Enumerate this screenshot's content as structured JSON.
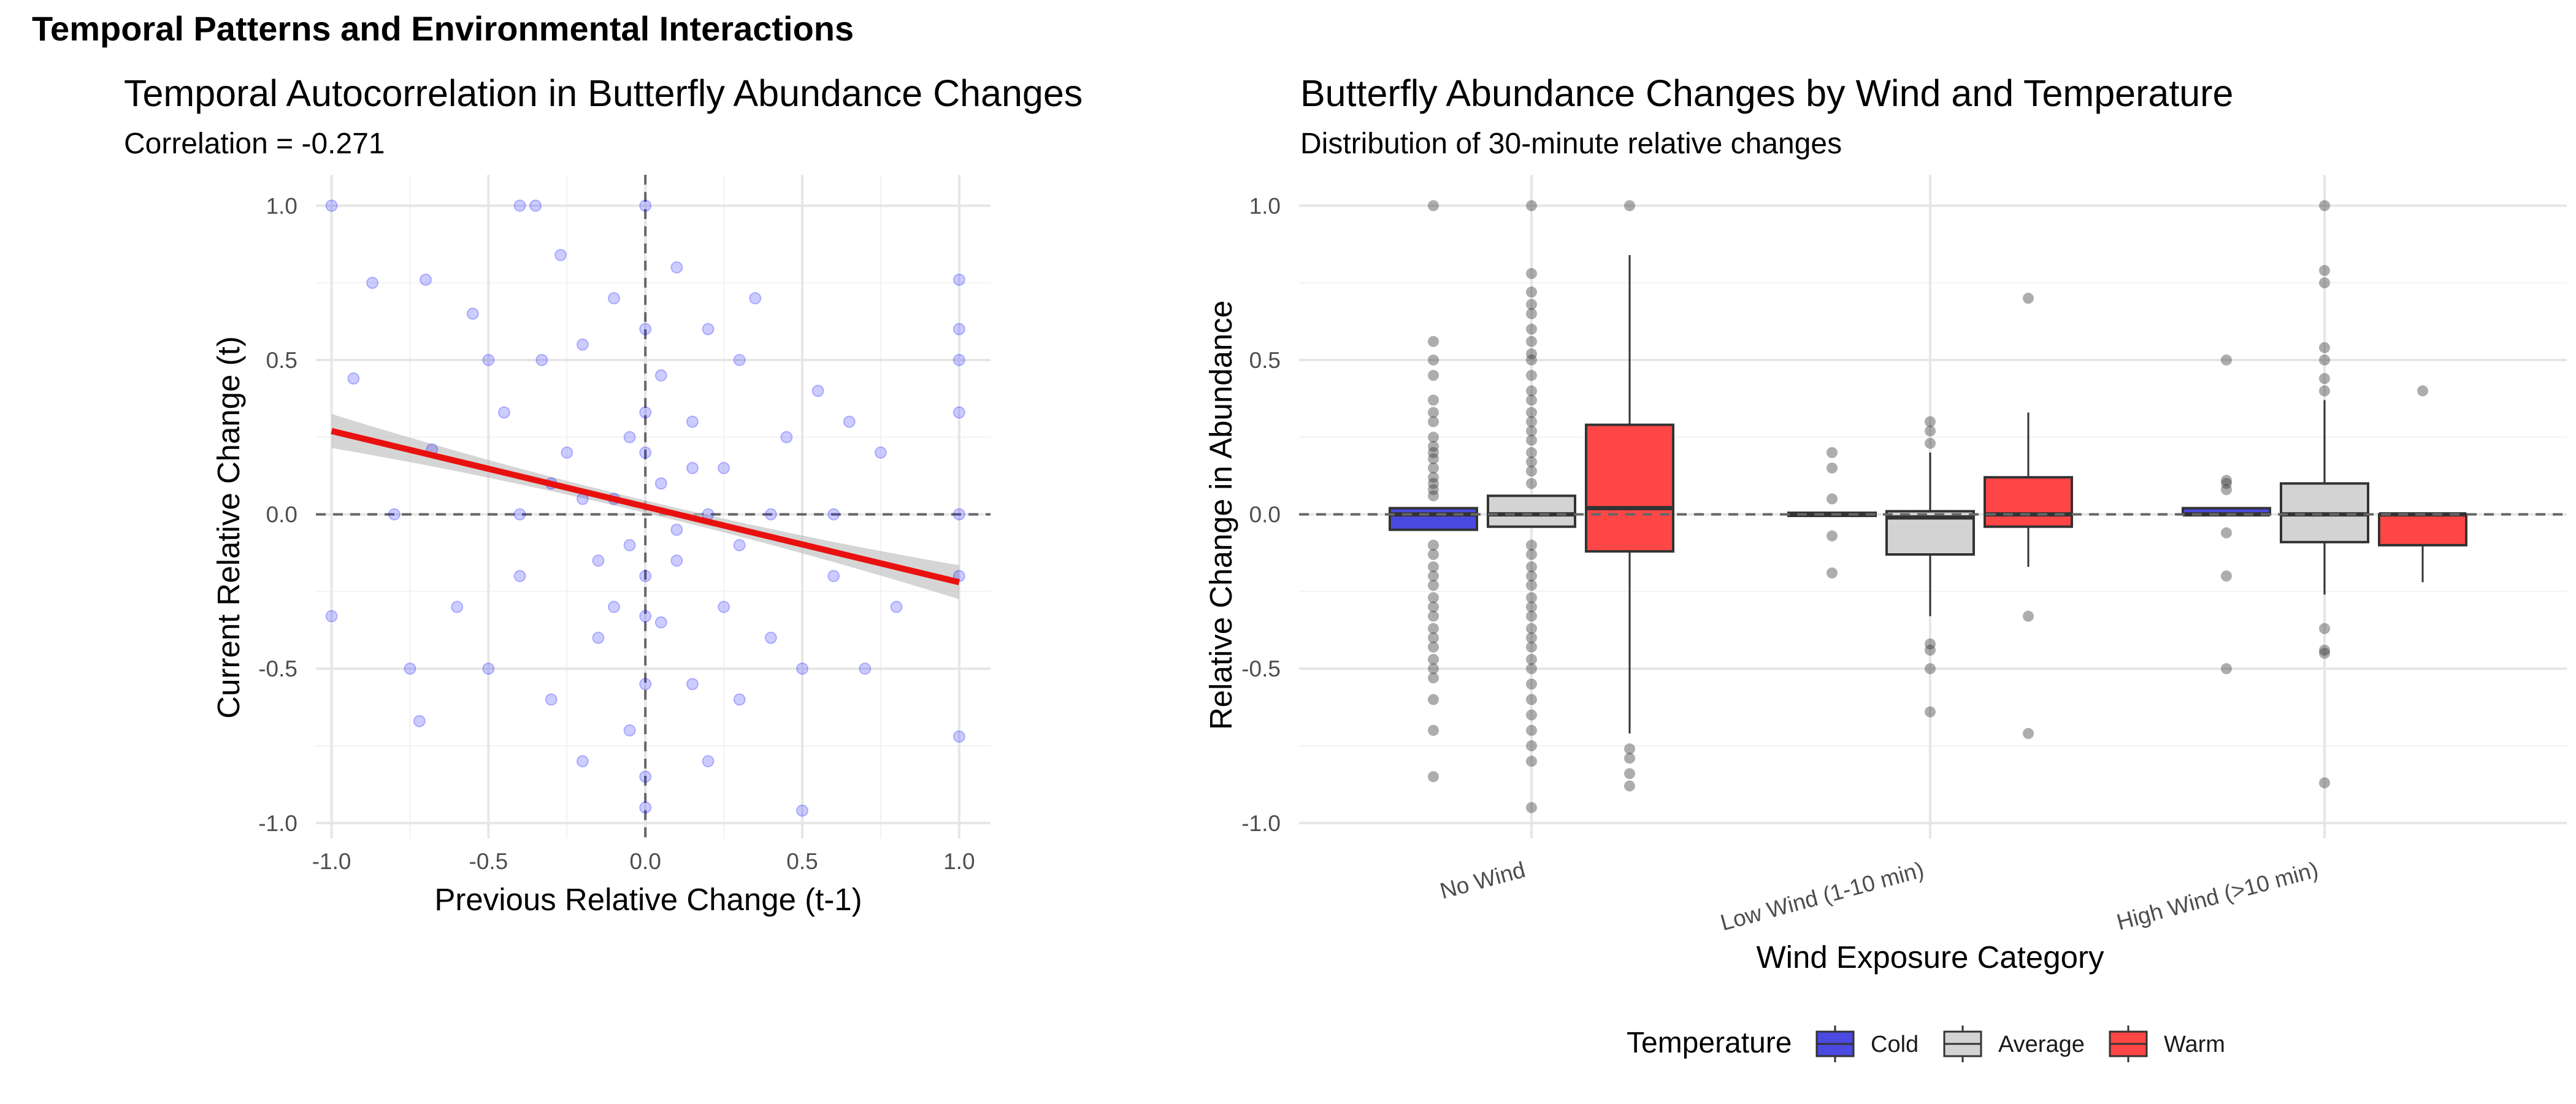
{
  "page": {
    "title": "Temporal Patterns and Environmental Interactions"
  },
  "colors": {
    "cold": "#4a4ae0",
    "average": "#d3d3d3",
    "warm": "#ff4646",
    "points": "#0000ff",
    "fit": "#e8110f"
  },
  "chart_data": [
    {
      "type": "scatter",
      "title": "Temporal Autocorrelation in Butterfly Abundance Changes",
      "subtitle": "Correlation = -0.271",
      "xlabel": "Previous Relative Change (t-1)",
      "ylabel": "Current Relative Change (t)",
      "xlim": [
        -1.05,
        1.1
      ],
      "ylim": [
        -1.05,
        1.1
      ],
      "x_ticks": [
        -1.0,
        -0.5,
        0.0,
        0.5,
        1.0
      ],
      "y_ticks": [
        -1.0,
        -0.5,
        0.0,
        0.5,
        1.0
      ],
      "x_tick_labels": [
        "-1.0",
        "-0.5",
        "0.0",
        "0.5",
        "1.0"
      ],
      "y_tick_labels": [
        "-1.0",
        "-0.5",
        "0.0",
        "0.5",
        "1.0"
      ],
      "reference_lines": {
        "h": 0,
        "v": 0,
        "style": "dashed"
      },
      "fit": {
        "x": [
          -1.0,
          1.0
        ],
        "y": [
          0.27,
          -0.22
        ],
        "color": "red",
        "confidence_band": true
      },
      "point_color": "blue",
      "point_alpha": 0.2,
      "points": [
        [
          -1.0,
          1.0
        ],
        [
          -0.4,
          1.0
        ],
        [
          -0.35,
          1.0
        ],
        [
          0.0,
          1.0
        ],
        [
          -1.0,
          -0.33
        ],
        [
          -0.93,
          0.44
        ],
        [
          -0.87,
          0.75
        ],
        [
          -0.8,
          0.0
        ],
        [
          -0.75,
          -0.5
        ],
        [
          -0.72,
          -0.67
        ],
        [
          -0.7,
          0.76
        ],
        [
          -0.68,
          0.21
        ],
        [
          -0.6,
          -0.3
        ],
        [
          -0.55,
          0.65
        ],
        [
          -0.5,
          0.5
        ],
        [
          -0.5,
          -0.5
        ],
        [
          -0.45,
          0.33
        ],
        [
          -0.4,
          -0.2
        ],
        [
          -0.33,
          0.5
        ],
        [
          -0.3,
          -0.6
        ],
        [
          -0.27,
          0.84
        ],
        [
          -0.25,
          0.2
        ],
        [
          -0.2,
          -0.8
        ],
        [
          -0.2,
          0.55
        ],
        [
          -0.15,
          -0.4
        ],
        [
          -0.1,
          0.7
        ],
        [
          -0.1,
          -0.3
        ],
        [
          -0.05,
          0.25
        ],
        [
          -0.05,
          -0.7
        ],
        [
          0.0,
          0.6
        ],
        [
          0.0,
          -0.55
        ],
        [
          0.0,
          -0.95
        ],
        [
          0.0,
          -0.85
        ],
        [
          0.05,
          0.45
        ],
        [
          0.05,
          -0.35
        ],
        [
          0.1,
          0.8
        ],
        [
          0.1,
          -0.15
        ],
        [
          0.15,
          0.3
        ],
        [
          0.15,
          -0.55
        ],
        [
          0.2,
          0.6
        ],
        [
          0.2,
          -0.8
        ],
        [
          0.25,
          0.15
        ],
        [
          0.25,
          -0.3
        ],
        [
          0.3,
          0.5
        ],
        [
          0.3,
          -0.6
        ],
        [
          0.35,
          0.7
        ],
        [
          0.4,
          -0.4
        ],
        [
          0.45,
          0.25
        ],
        [
          0.5,
          -0.5
        ],
        [
          0.5,
          -0.96
        ],
        [
          0.55,
          0.4
        ],
        [
          0.6,
          -0.2
        ],
        [
          0.65,
          0.3
        ],
        [
          0.7,
          -0.5
        ],
        [
          0.75,
          0.2
        ],
        [
          0.8,
          -0.3
        ],
        [
          1.0,
          0.76
        ],
        [
          1.0,
          0.6
        ],
        [
          1.0,
          0.5
        ],
        [
          1.0,
          0.33
        ],
        [
          1.0,
          0.0
        ],
        [
          1.0,
          -0.2
        ],
        [
          1.0,
          -0.72
        ],
        [
          -0.1,
          0.05
        ],
        [
          0.1,
          -0.05
        ],
        [
          0.05,
          0.1
        ],
        [
          -0.05,
          -0.1
        ],
        [
          0.2,
          0.0
        ],
        [
          -0.2,
          0.05
        ],
        [
          0.3,
          -0.1
        ],
        [
          -0.3,
          0.1
        ],
        [
          0.15,
          0.15
        ],
        [
          -0.15,
          -0.15
        ],
        [
          0.4,
          0.0
        ],
        [
          -0.4,
          0.0
        ],
        [
          0.6,
          0.0
        ],
        [
          0.0,
          0.2
        ],
        [
          0.0,
          -0.2
        ],
        [
          0.0,
          0.33
        ],
        [
          0.0,
          -0.33
        ]
      ]
    },
    {
      "type": "box",
      "title": "Butterfly Abundance Changes by Wind and Temperature",
      "subtitle": "Distribution of 30-minute relative changes",
      "xlabel": "Wind Exposure Category",
      "ylabel": "Relative Change in Abundance",
      "ylim": [
        -1.05,
        1.1
      ],
      "y_ticks": [
        -1.0,
        -0.5,
        0.0,
        0.5,
        1.0
      ],
      "y_tick_labels": [
        "-1.0",
        "-0.5",
        "0.0",
        "0.5",
        "1.0"
      ],
      "reference_line": {
        "h": 0,
        "style": "dashed"
      },
      "categories": [
        "No Wind",
        "Low Wind (1-10 min)",
        "High Wind (>10 min)"
      ],
      "legend": {
        "title": "Temperature",
        "position": "bottom",
        "entries": [
          "Cold",
          "Average",
          "Warm"
        ]
      },
      "boxes": [
        {
          "category": "No Wind",
          "group": "Cold",
          "q1": -0.05,
          "median": 0.0,
          "q3": 0.02,
          "whisker_low": -0.05,
          "whisker_high": 0.02,
          "outliers": [
            1.0,
            0.56,
            0.5,
            0.45,
            0.37,
            0.33,
            0.3,
            0.25,
            0.22,
            0.2,
            0.18,
            0.15,
            0.12,
            0.1,
            0.08,
            0.06,
            -0.1,
            -0.13,
            -0.17,
            -0.2,
            -0.23,
            -0.27,
            -0.3,
            -0.33,
            -0.37,
            -0.4,
            -0.43,
            -0.47,
            -0.5,
            -0.53,
            -0.6,
            -0.7,
            -0.85
          ]
        },
        {
          "category": "No Wind",
          "group": "Average",
          "q1": -0.04,
          "median": 0.0,
          "q3": 0.06,
          "whisker_low": -0.04,
          "whisker_high": 0.06,
          "outliers": [
            1.0,
            0.78,
            0.72,
            0.68,
            0.65,
            0.6,
            0.56,
            0.52,
            0.5,
            0.45,
            0.4,
            0.37,
            0.33,
            0.3,
            0.27,
            0.24,
            0.2,
            0.17,
            0.14,
            0.1,
            -0.1,
            -0.13,
            -0.17,
            -0.2,
            -0.23,
            -0.27,
            -0.3,
            -0.33,
            -0.37,
            -0.4,
            -0.43,
            -0.47,
            -0.5,
            -0.55,
            -0.6,
            -0.65,
            -0.7,
            -0.75,
            -0.8,
            -0.95
          ]
        },
        {
          "category": "No Wind",
          "group": "Warm",
          "q1": -0.12,
          "median": 0.02,
          "q3": 0.29,
          "whisker_low": -0.71,
          "whisker_high": 0.84,
          "outliers": [
            1.0,
            -0.76,
            -0.79,
            -0.84,
            -0.88
          ]
        },
        {
          "category": "Low Wind (1-10 min)",
          "group": "Cold",
          "q1": -0.005,
          "median": 0.0,
          "q3": 0.005,
          "whisker_low": -0.005,
          "whisker_high": 0.005,
          "outliers": [
            0.2,
            0.15,
            0.05,
            -0.07,
            -0.19
          ]
        },
        {
          "category": "Low Wind (1-10 min)",
          "group": "Average",
          "q1": -0.13,
          "median": -0.01,
          "q3": 0.01,
          "whisker_low": -0.33,
          "whisker_high": 0.2,
          "outliers": [
            0.3,
            0.27,
            0.23,
            -0.42,
            -0.44,
            -0.5,
            -0.64
          ]
        },
        {
          "category": "Low Wind (1-10 min)",
          "group": "Warm",
          "q1": -0.04,
          "median": 0.0,
          "q3": 0.12,
          "whisker_low": -0.17,
          "whisker_high": 0.33,
          "outliers": [
            0.7,
            -0.33,
            -0.71
          ]
        },
        {
          "category": "High Wind (>10 min)",
          "group": "Cold",
          "q1": 0.0,
          "median": 0.0,
          "q3": 0.02,
          "whisker_low": 0.0,
          "whisker_high": 0.02,
          "outliers": [
            0.5,
            0.11,
            0.1,
            0.08,
            -0.06,
            -0.2,
            -0.5
          ]
        },
        {
          "category": "High Wind (>10 min)",
          "group": "Average",
          "q1": -0.09,
          "median": 0.0,
          "q3": 0.1,
          "whisker_low": -0.26,
          "whisker_high": 0.37,
          "outliers": [
            1.0,
            0.79,
            0.75,
            0.54,
            0.5,
            0.44,
            0.4,
            -0.37,
            -0.44,
            -0.45,
            -0.87
          ]
        },
        {
          "category": "High Wind (>10 min)",
          "group": "Warm",
          "q1": -0.1,
          "median": 0.0,
          "q3": 0.0,
          "whisker_low": -0.22,
          "whisker_high": 0.0,
          "outliers": [
            0.4
          ]
        }
      ]
    }
  ]
}
